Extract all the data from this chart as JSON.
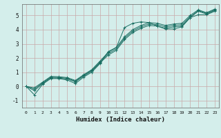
{
  "title": "",
  "xlabel": "Humidex (Indice chaleur)",
  "ylabel": "",
  "bg_color": "#d4eeeb",
  "grid_color": "#c8a8a8",
  "line_color": "#1a6e62",
  "xlim": [
    -0.5,
    23.5
  ],
  "ylim": [
    -1.5,
    5.8
  ],
  "yticks": [
    -1,
    0,
    1,
    2,
    3,
    4,
    5
  ],
  "xticks": [
    0,
    1,
    2,
    3,
    4,
    5,
    6,
    7,
    8,
    9,
    10,
    11,
    12,
    13,
    14,
    15,
    16,
    17,
    18,
    19,
    20,
    21,
    22,
    23
  ],
  "line1_x": [
    0,
    1,
    2,
    3,
    4,
    5,
    6,
    7,
    8,
    9,
    10,
    11,
    12,
    13,
    14,
    15,
    16,
    17,
    18,
    19,
    20,
    21,
    22,
    23
  ],
  "line1_y": [
    0.0,
    -0.6,
    0.15,
    0.55,
    0.55,
    0.45,
    0.2,
    0.65,
    1.0,
    1.6,
    2.45,
    2.75,
    4.15,
    4.45,
    4.55,
    4.5,
    4.25,
    4.05,
    4.05,
    4.2,
    4.85,
    5.05,
    5.05,
    5.3
  ],
  "line2_x": [
    0,
    1,
    2,
    3,
    4,
    5,
    6,
    7,
    8,
    9,
    10,
    11,
    12,
    13,
    14,
    15,
    16,
    17,
    18,
    19,
    20,
    21,
    22,
    23
  ],
  "line2_y": [
    0.0,
    -0.3,
    0.2,
    0.6,
    0.58,
    0.52,
    0.32,
    0.72,
    1.08,
    1.65,
    2.2,
    2.55,
    3.3,
    3.8,
    4.1,
    4.3,
    4.25,
    4.1,
    4.2,
    4.25,
    4.85,
    5.3,
    5.1,
    5.35
  ],
  "line3_x": [
    0,
    1,
    2,
    3,
    4,
    5,
    6,
    7,
    8,
    9,
    10,
    11,
    12,
    13,
    14,
    15,
    16,
    17,
    18,
    19,
    20,
    21,
    22,
    23
  ],
  "line3_y": [
    0.0,
    -0.2,
    0.25,
    0.65,
    0.63,
    0.57,
    0.37,
    0.77,
    1.13,
    1.72,
    2.3,
    2.65,
    3.4,
    3.9,
    4.2,
    4.4,
    4.35,
    4.2,
    4.3,
    4.35,
    4.9,
    5.35,
    5.15,
    5.4
  ],
  "line4_x": [
    0,
    1,
    2,
    3,
    4,
    5,
    6,
    7,
    8,
    9,
    10,
    11,
    12,
    13,
    14,
    15,
    16,
    17,
    18,
    19,
    20,
    21,
    22,
    23
  ],
  "line4_y": [
    0.0,
    -0.1,
    0.3,
    0.7,
    0.68,
    0.62,
    0.42,
    0.82,
    1.18,
    1.78,
    2.4,
    2.75,
    3.5,
    4.0,
    4.3,
    4.5,
    4.45,
    4.3,
    4.4,
    4.45,
    5.0,
    5.4,
    5.2,
    5.45
  ]
}
